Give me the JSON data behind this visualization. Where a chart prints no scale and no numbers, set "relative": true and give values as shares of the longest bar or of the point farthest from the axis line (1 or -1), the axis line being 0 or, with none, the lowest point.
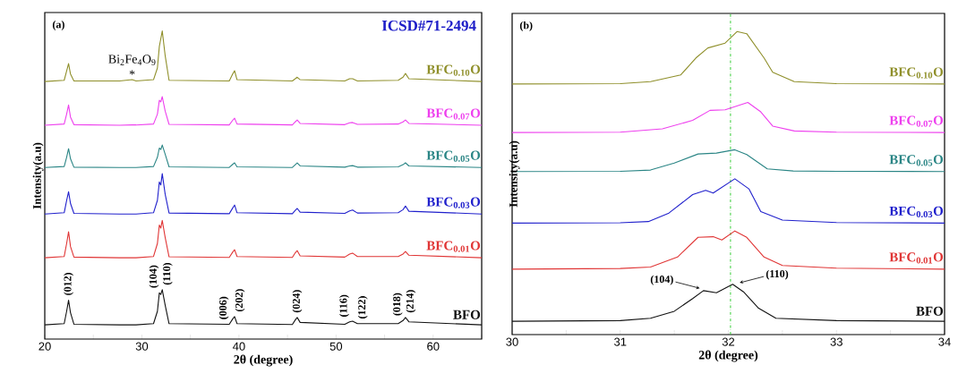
{
  "chart_data": [
    {
      "type": "line",
      "title": "(a)",
      "xlabel": "2θ (degree)",
      "ylabel": "Intensity(a.u)",
      "relative": true,
      "xlim": [
        20,
        65
      ],
      "xticks": [
        20,
        {
          "value": 25,
          "label": null
        },
        30,
        {
          "value": 35,
          "label": null
        },
        40,
        {
          "value": 45,
          "label": null
        },
        50,
        {
          "value": 55,
          "label": null
        },
        60,
        {
          "value": 65,
          "label": null
        }
      ],
      "x": [
        20,
        22.0,
        22.25,
        22.45,
        22.65,
        23.0,
        27.7,
        29.0,
        29.4,
        31.2,
        31.6,
        31.8,
        31.95,
        32.1,
        32.4,
        32.8,
        39.0,
        39.35,
        39.55,
        39.8,
        45.5,
        45.8,
        46.0,
        46.3,
        50.9,
        51.4,
        51.7,
        52.2,
        56.4,
        56.9,
        57.15,
        57.5,
        65
      ],
      "series": [
        {
          "name": "BFC$_{0.10}$O",
          "color": "#8f8f2a",
          "values": [
            0.836,
            0.84,
            0.87,
            0.894,
            0.86,
            0.838,
            0.838,
            0.842,
            0.838,
            0.842,
            0.88,
            0.95,
            0.975,
            1.0,
            0.92,
            0.84,
            0.838,
            0.86,
            0.871,
            0.842,
            0.838,
            0.845,
            0.85,
            0.842,
            0.838,
            0.845,
            0.845,
            0.838,
            0.84,
            0.85,
            0.862,
            0.845,
            0.836
          ]
        },
        {
          "name": "BFC$_{0.07}$O",
          "color": "#ee3fee",
          "values": [
            0.694,
            0.698,
            0.73,
            0.76,
            0.72,
            0.696,
            0.694,
            0.695,
            0.695,
            0.698,
            0.73,
            0.775,
            0.77,
            0.787,
            0.74,
            0.697,
            0.695,
            0.71,
            0.717,
            0.698,
            0.695,
            0.705,
            0.711,
            0.7,
            0.696,
            0.702,
            0.703,
            0.697,
            0.698,
            0.705,
            0.711,
            0.7,
            0.694
          ]
        },
        {
          "name": "BFC$_{0.05}$O",
          "color": "#2a8585",
          "values": [
            0.557,
            0.56,
            0.59,
            0.618,
            0.585,
            0.558,
            0.557,
            0.557,
            0.557,
            0.56,
            0.59,
            0.62,
            0.615,
            0.63,
            0.6,
            0.559,
            0.557,
            0.567,
            0.572,
            0.559,
            0.557,
            0.566,
            0.572,
            0.562,
            0.558,
            0.562,
            0.563,
            0.558,
            0.559,
            0.566,
            0.572,
            0.562,
            0.557
          ]
        },
        {
          "name": "BFC$_{0.03}$O",
          "color": "#2020cc",
          "values": [
            0.406,
            0.41,
            0.45,
            0.478,
            0.44,
            0.408,
            0.406,
            0.406,
            0.406,
            0.41,
            0.45,
            0.51,
            0.5,
            0.537,
            0.47,
            0.409,
            0.407,
            0.425,
            0.435,
            0.41,
            0.407,
            0.418,
            0.424,
            0.412,
            0.408,
            0.416,
            0.419,
            0.409,
            0.41,
            0.42,
            0.432,
            0.415,
            0.406
          ]
        },
        {
          "name": "BFC$_{0.01}$O",
          "color": "#e03535",
          "values": [
            0.264,
            0.268,
            0.31,
            0.348,
            0.3,
            0.266,
            0.264,
            0.264,
            0.264,
            0.268,
            0.31,
            0.37,
            0.36,
            0.385,
            0.33,
            0.267,
            0.265,
            0.282,
            0.29,
            0.268,
            0.265,
            0.28,
            0.287,
            0.27,
            0.266,
            0.276,
            0.279,
            0.268,
            0.268,
            0.276,
            0.284,
            0.272,
            0.264
          ]
        },
        {
          "name": "BFO",
          "color": "#111111",
          "values": [
            0.046,
            0.05,
            0.09,
            0.126,
            0.085,
            0.048,
            0.046,
            0.046,
            0.046,
            0.05,
            0.09,
            0.15,
            0.145,
            0.16,
            0.11,
            0.05,
            0.048,
            0.065,
            0.073,
            0.05,
            0.047,
            0.062,
            0.07,
            0.054,
            0.048,
            0.056,
            0.058,
            0.05,
            0.05,
            0.06,
            0.07,
            0.056,
            0.046
          ]
        }
      ],
      "annotations": [
        "ICSD#71-2494",
        {
          "text": "Bi$_{2}$Fe$_{4}$O$_{9}$",
          "x": 29.0,
          "y": 0.842
        },
        {
          "text": "*",
          "x": 29.0,
          "y": 0.842
        },
        {
          "text": "(012)",
          "x": 22.45,
          "y": 0.126
        },
        {
          "text": "(104)",
          "x": 31.8,
          "y": 0.15
        },
        {
          "text": "(110)",
          "x": 32.1,
          "y": 0.16
        },
        {
          "text": "(006)",
          "x": 39.0,
          "y": 0.048
        },
        {
          "text": "(202)",
          "x": 39.55,
          "y": 0.073
        },
        {
          "text": "(024)",
          "x": 46.0,
          "y": 0.07
        },
        {
          "text": "(116)",
          "x": 51.4,
          "y": 0.056
        },
        {
          "text": "(122)",
          "x": 52.2,
          "y": 0.05
        },
        {
          "text": "(018)",
          "x": 56.9,
          "y": 0.06
        },
        {
          "text": "(214)",
          "x": 57.15,
          "y": 0.07
        }
      ]
    },
    {
      "type": "line",
      "title": "(b)",
      "xlabel": "2θ (degree)",
      "ylabel": "Intensity(a.u)",
      "relative": true,
      "xlim": [
        30,
        34
      ],
      "xticks": [
        30,
        {
          "value": 30.5,
          "label": null
        },
        31,
        {
          "value": 31.5,
          "label": null
        },
        32,
        {
          "value": 32.5,
          "label": null
        },
        33,
        {
          "value": 33.5,
          "label": null
        },
        34
      ],
      "series": [
        {
          "name": "BFC$_{0.10}$O",
          "color": "#8f8f2a",
          "x": [
            30,
            31,
            31.28,
            31.56,
            31.7,
            31.81,
            31.97,
            32.08,
            32.17,
            32.33,
            32.41,
            32.61,
            33,
            34
          ],
          "values": [
            0.827,
            0.828,
            0.835,
            0.857,
            0.913,
            0.946,
            0.962,
            1.0,
            0.993,
            0.913,
            0.866,
            0.835,
            0.828,
            0.827
          ]
        },
        {
          "name": "BFC$_{0.07}$O",
          "color": "#ee3fee",
          "x": [
            30,
            31,
            31.39,
            31.67,
            31.83,
            31.97,
            32.18,
            32.3,
            32.41,
            32.61,
            33,
            34
          ],
          "values": [
            0.667,
            0.668,
            0.679,
            0.707,
            0.74,
            0.742,
            0.766,
            0.735,
            0.688,
            0.672,
            0.668,
            0.667
          ]
        },
        {
          "name": "BFC$_{0.05}$O",
          "color": "#2a8585",
          "x": [
            30,
            31,
            31.28,
            31.5,
            31.72,
            31.89,
            32.06,
            32.17,
            32.36,
            32.6,
            33,
            34
          ],
          "values": [
            0.538,
            0.539,
            0.543,
            0.566,
            0.596,
            0.599,
            0.61,
            0.594,
            0.547,
            0.54,
            0.539,
            0.538
          ]
        },
        {
          "name": "BFC$_{0.03}$O",
          "color": "#2020cc",
          "x": [
            30,
            31,
            31.26,
            31.45,
            31.67,
            31.79,
            31.86,
            32.06,
            32.19,
            32.3,
            32.5,
            33,
            34
          ],
          "values": [
            0.368,
            0.369,
            0.373,
            0.401,
            0.462,
            0.476,
            0.467,
            0.514,
            0.481,
            0.406,
            0.378,
            0.37,
            0.368
          ]
        },
        {
          "name": "BFC$_{0.01}$O",
          "color": "#e03535",
          "x": [
            30,
            31,
            31.28,
            31.53,
            31.72,
            31.86,
            31.94,
            32.06,
            32.17,
            32.33,
            32.5,
            33,
            34
          ],
          "values": [
            0.216,
            0.218,
            0.223,
            0.256,
            0.321,
            0.323,
            0.312,
            0.342,
            0.321,
            0.256,
            0.228,
            0.219,
            0.216
          ]
        },
        {
          "name": "BFO",
          "color": "#111111",
          "x": [
            30,
            31,
            31.28,
            31.5,
            31.67,
            31.77,
            31.89,
            32.04,
            32.14,
            32.28,
            32.44,
            33,
            34
          ],
          "values": [
            0.044,
            0.046,
            0.054,
            0.077,
            0.119,
            0.145,
            0.138,
            0.166,
            0.141,
            0.087,
            0.054,
            0.046,
            0.044
          ]
        }
      ],
      "ref_lines": [
        {
          "axis": "x",
          "value": 32.02,
          "color": "#33cc33",
          "line_style": "dashdot"
        }
      ],
      "annotations": [
        {
          "text": "(104)",
          "x": 31.76,
          "y": 0.15
        },
        {
          "text": "(110)",
          "x": 32.08,
          "y": 0.168
        }
      ]
    }
  ]
}
